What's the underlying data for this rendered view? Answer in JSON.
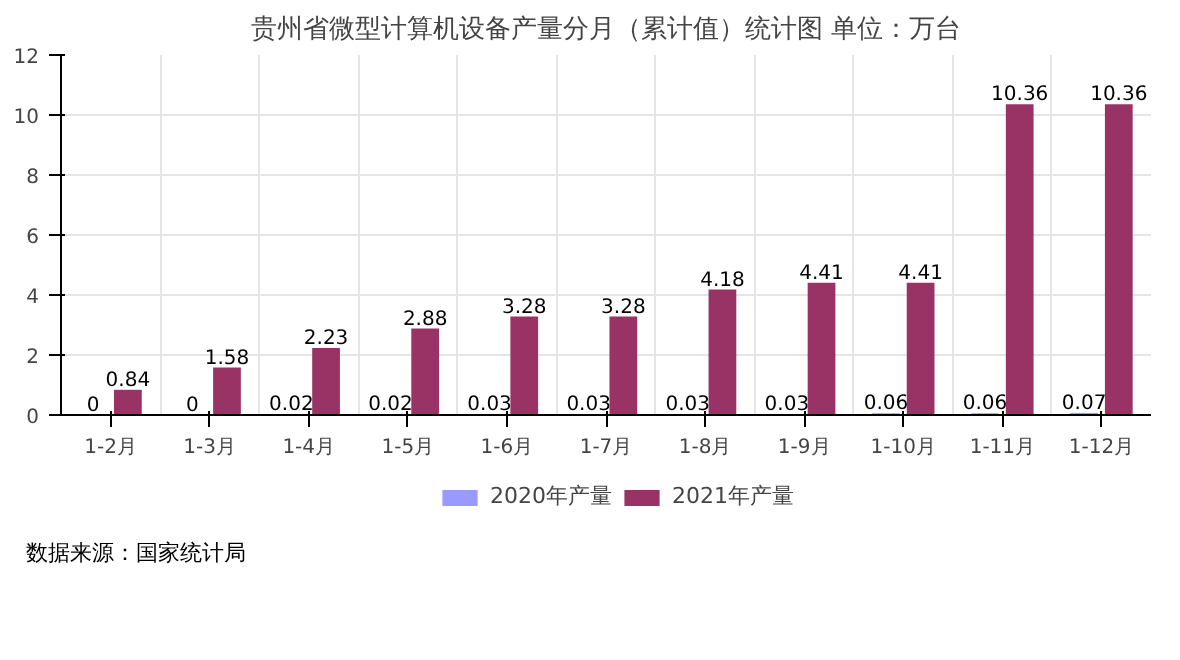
{
  "chart_data": {
    "type": "bar",
    "title": "贵州省微型计算机设备产量分月（累计值）统计图 单位：万台",
    "categories": [
      "1-2月",
      "1-3月",
      "1-4月",
      "1-5月",
      "1-6月",
      "1-7月",
      "1-8月",
      "1-9月",
      "1-10月",
      "1-11月",
      "1-12月"
    ],
    "series": [
      {
        "name": "2020年产量",
        "color": "#9999ff",
        "values": [
          0,
          0,
          0.02,
          0.02,
          0.03,
          0.03,
          0.03,
          0.03,
          0.06,
          0.06,
          0.07
        ]
      },
      {
        "name": "2021年产量",
        "color": "#993366",
        "values": [
          0.84,
          1.58,
          2.23,
          2.88,
          3.28,
          3.28,
          4.18,
          4.41,
          4.41,
          10.36,
          10.36
        ]
      }
    ],
    "ylim": [
      0,
      12
    ],
    "yticks": [
      0,
      2,
      4,
      6,
      8,
      10,
      12
    ],
    "grid": true,
    "legend": "bottom",
    "data_labels": true,
    "annotations": [
      "数据来源：国家统计局"
    ]
  }
}
